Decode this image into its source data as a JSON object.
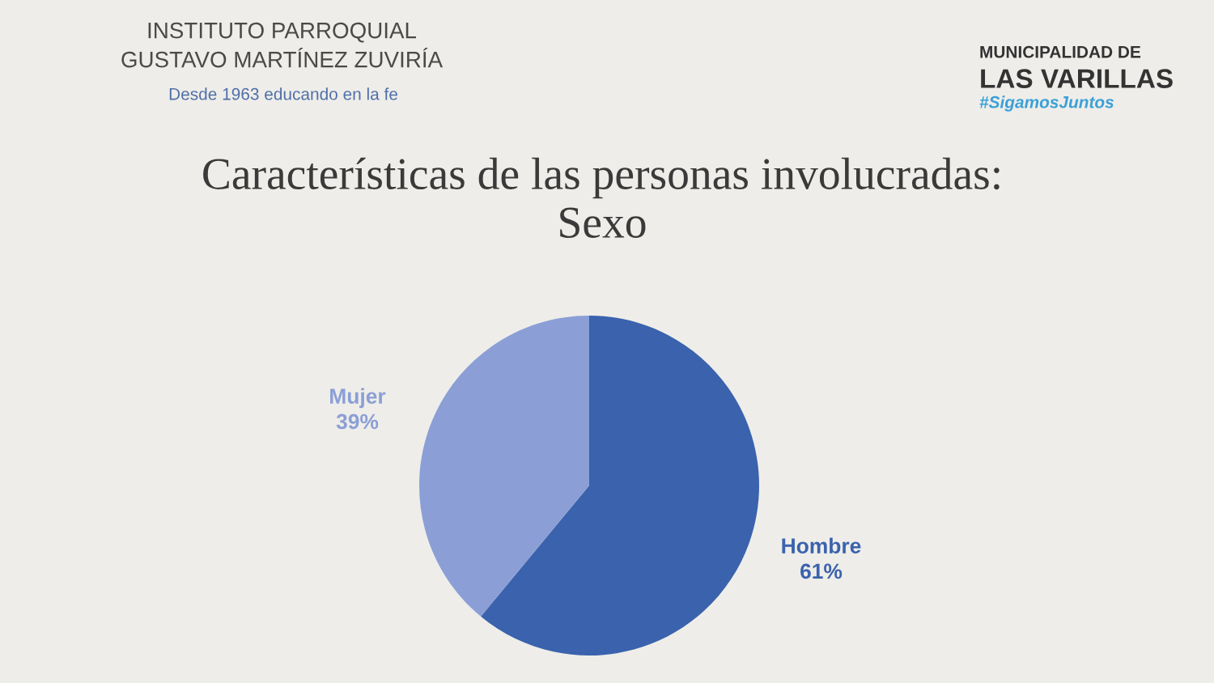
{
  "chart_data": {
    "type": "pie",
    "title": "Características de las personas involucradas:\nSexo",
    "categories": [
      "Hombre",
      "Mujer"
    ],
    "values": [
      61,
      39
    ],
    "colors": [
      "#3a62ad",
      "#8b9fd6"
    ],
    "value_labels": [
      "61%",
      "39%"
    ],
    "annotations": [
      "INSTITUTO PARROQUIAL",
      "GUSTAVO MARTÍNEZ ZUVIRÍA",
      "Desde 1963 educando en la fe",
      "MUNICIPALIDAD DE",
      "LAS VARILLAS",
      "#SigamosJuntos"
    ]
  }
}
